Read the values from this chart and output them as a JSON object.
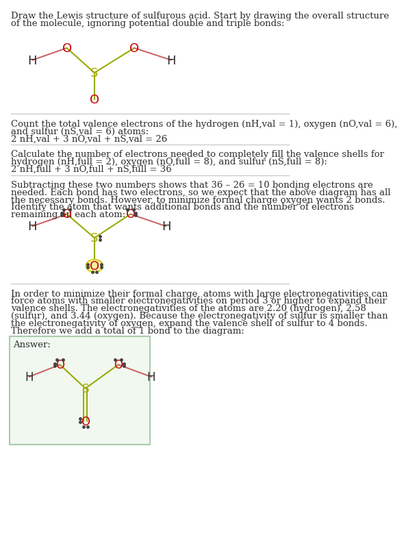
{
  "bg_color": "#ffffff",
  "text_color": "#2d2d2d",
  "atom_colors": {
    "H": "#2d2d2d",
    "O": "#cc0000",
    "S": "#aaaa00",
    "bond_HO": "#cc6666",
    "bond_SO": "#99aa00"
  },
  "s1_lines": [
    "Draw the Lewis structure of sulfurous acid. Start by drawing the overall structure",
    "of the molecule, ignoring potential double and triple bonds:"
  ],
  "s2_lines": [
    "Count the total valence electrons of the hydrogen (nH,val = 1), oxygen (nO,val = 6),",
    "and sulfur (nS,val = 6) atoms:",
    "2 nH,val + 3 nO,val + nS,val = 26"
  ],
  "s3_lines": [
    "Calculate the number of electrons needed to completely fill the valence shells for",
    "hydrogen (nH,full = 2), oxygen (nO,full = 8), and sulfur (nS,full = 8):",
    "2 nH,full + 3 nO,full + nS,full = 36"
  ],
  "s4_lines": [
    "Subtracting these two numbers shows that 36 – 26 = 10 bonding electrons are",
    "needed. Each bond has two electrons, so we expect that the above diagram has all",
    "the necessary bonds. However, to minimize formal charge oxygen wants 2 bonds.",
    "Identify the atom that wants additional bonds and the number of electrons",
    "remaining on each atom:"
  ],
  "s5_lines": [
    "In order to minimize their formal charge, atoms with large electronegativities can",
    "force atoms with smaller electronegativities on period 3 or higher to expand their",
    "valence shells. The electronegativities of the atoms are 2.20 (hydrogen), 2.58",
    "(sulfur), and 3.44 (oxygen). Because the electronegativity of sulfur is smaller than",
    "the electronegativity of oxygen, expand the valence shell of sulfur to 4 bonds.",
    "Therefore we add a total of 1 bond to the diagram:"
  ],
  "answer_label": "Answer:",
  "divider_color": "#cccccc",
  "answer_bg": "#f0f8f0",
  "answer_border": "#aaccaa",
  "dot_color": "#444444"
}
